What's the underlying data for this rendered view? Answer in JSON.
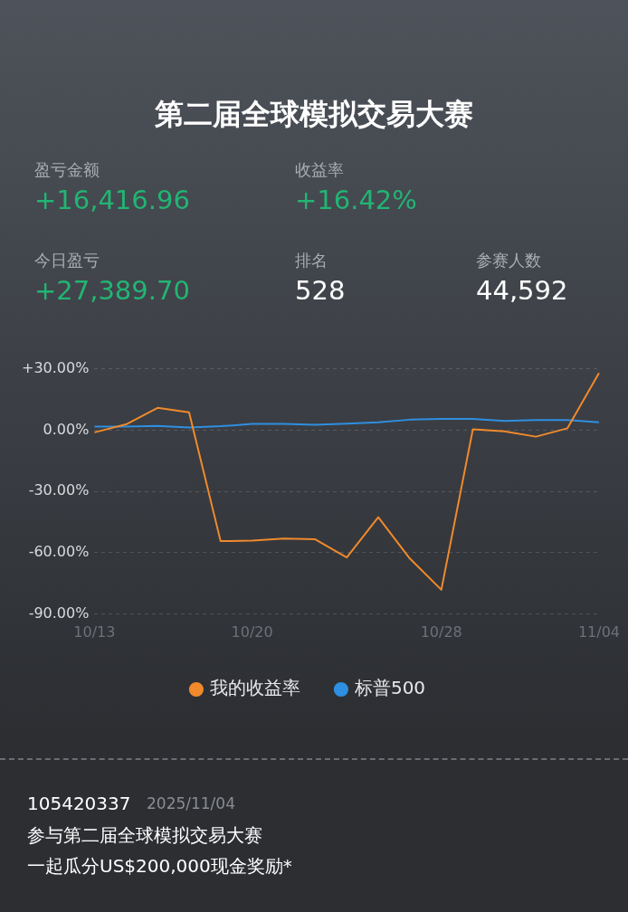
{
  "chart_data": {
    "type": "line",
    "title": "第二届全球模拟交易大赛",
    "annotations": [
      "盈亏金额",
      "+16,416.96",
      "收益率",
      "+16.42%",
      "今日盈亏",
      "+27,389.70",
      "排名",
      "528",
      "参赛人数",
      "44,592",
      "105420337",
      "2025/11/04",
      "参与第二届全球模拟交易大赛",
      "一起瓜分US$200,000现金奖励*"
    ],
    "categories": [
      "10/13",
      null,
      null,
      null,
      null,
      "10/20",
      null,
      null,
      null,
      null,
      null,
      "10/28",
      null,
      null,
      null,
      null,
      "11/04"
    ],
    "series": [
      {
        "name": "我的收益率",
        "color": "#f08a2c",
        "values": [
          -1.1,
          2.8,
          10.9,
          8.7,
          -54.3,
          -54.0,
          -53.0,
          -53.4,
          -62.3,
          -42.6,
          -62.8,
          -78.1,
          0.4,
          -0.6,
          -3.2,
          0.9,
          27.9
        ]
      },
      {
        "name": "标普500",
        "color": "#2f8fe0",
        "values": [
          1.7,
          1.7,
          2.1,
          1.3,
          1.9,
          3.0,
          3.0,
          2.6,
          3.2,
          3.8,
          5.1,
          5.5,
          5.5,
          4.5,
          4.9,
          4.9,
          3.8
        ]
      }
    ],
    "ylim": [
      -90,
      30
    ],
    "yticks": [
      {
        "value": 30,
        "label": "+30.00%"
      },
      {
        "value": 0,
        "label": "0.00%"
      },
      {
        "value": -30,
        "label": "-30.00%"
      },
      {
        "value": -60,
        "label": "-60.00%"
      },
      {
        "value": -90,
        "label": "-90.00%"
      }
    ],
    "grid": "y",
    "legend": "bottom",
    "marker": "none",
    "line_style": "solid"
  }
}
